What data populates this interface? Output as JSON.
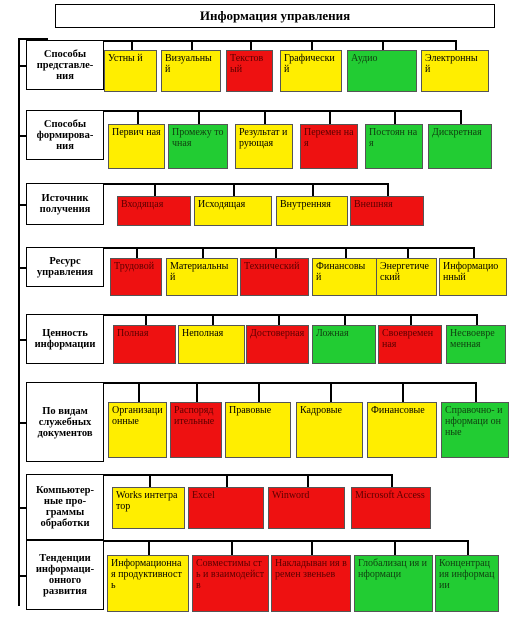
{
  "title": "Информация управления",
  "colors": {
    "yellow": "#ffee00",
    "red": "#ee1111",
    "green": "#22cc33"
  },
  "rows": [
    {
      "category": "Способы представле-ния",
      "items": [
        {
          "label": "Устны й",
          "color": "yellow"
        },
        {
          "label": "Визуальны й",
          "color": "yellow"
        },
        {
          "label": "Текстов ый",
          "color": "red"
        },
        {
          "label": "Графически й",
          "color": "yellow"
        },
        {
          "label": "Аудио",
          "color": "green"
        },
        {
          "label": "Электронны й",
          "color": "yellow"
        }
      ]
    },
    {
      "category": "Способы формирова-ния",
      "items": [
        {
          "label": "Первич ная",
          "color": "yellow"
        },
        {
          "label": "Промежу точная",
          "color": "green"
        },
        {
          "label": "Результат ирующая",
          "color": "yellow"
        },
        {
          "label": "Перемен ная",
          "color": "red"
        },
        {
          "label": "Постоян ная",
          "color": "green"
        },
        {
          "label": "Дискретная",
          "color": "green"
        }
      ]
    },
    {
      "category": "Источник получения",
      "items": [
        {
          "label": "Входящая",
          "color": "red"
        },
        {
          "label": "Исходящая",
          "color": "yellow"
        },
        {
          "label": "Внутренняя",
          "color": "yellow"
        },
        {
          "label": "Внешняя",
          "color": "red"
        }
      ]
    },
    {
      "category": "Ресурс управления",
      "items": [
        {
          "label": "Трудовой",
          "color": "red"
        },
        {
          "label": "Материальны й",
          "color": "yellow"
        },
        {
          "label": "Технический",
          "color": "red"
        },
        {
          "label": "Финансовы й",
          "color": "yellow"
        },
        {
          "label": "Энергетиче ский",
          "color": "yellow"
        },
        {
          "label": "Информацио нный",
          "color": "yellow"
        }
      ]
    },
    {
      "category": "Ценность информации",
      "items": [
        {
          "label": "Полная",
          "color": "red"
        },
        {
          "label": "Неполная",
          "color": "yellow"
        },
        {
          "label": "Достоверная",
          "color": "red"
        },
        {
          "label": "Ложная",
          "color": "green"
        },
        {
          "label": "Своевремен ная",
          "color": "red"
        },
        {
          "label": "Несвоевре менная",
          "color": "green"
        }
      ]
    },
    {
      "category": "По видам служебных документов",
      "items": [
        {
          "label": "Организаци онные",
          "color": "yellow"
        },
        {
          "label": "Распоряд ительные",
          "color": "red"
        },
        {
          "label": "Правовые",
          "color": "yellow"
        },
        {
          "label": "Кадровые",
          "color": "yellow"
        },
        {
          "label": "Финансовые",
          "color": "yellow"
        },
        {
          "label": "Справочно- информаци онные",
          "color": "green"
        }
      ]
    },
    {
      "category": "Компьютер-ные про-граммы обработки",
      "items": [
        {
          "label": "Works интегратор",
          "color": "yellow"
        },
        {
          "label": "Excel",
          "color": "red"
        },
        {
          "label": "Winword",
          "color": "red"
        },
        {
          "label": "Microsoft Access",
          "color": "red"
        }
      ]
    },
    {
      "category": "Тенденции информаци-онного развития",
      "items": [
        {
          "label": "Информационна я продуктивность",
          "color": "yellow"
        },
        {
          "label": "Совместимы сть и взаимодейств",
          "color": "red"
        },
        {
          "label": "Накладыван ия времен звеньев",
          "color": "red"
        },
        {
          "label": "Глобализац ия информаци",
          "color": "green"
        },
        {
          "label": "Концентрация информации",
          "color": "green"
        }
      ]
    }
  ]
}
